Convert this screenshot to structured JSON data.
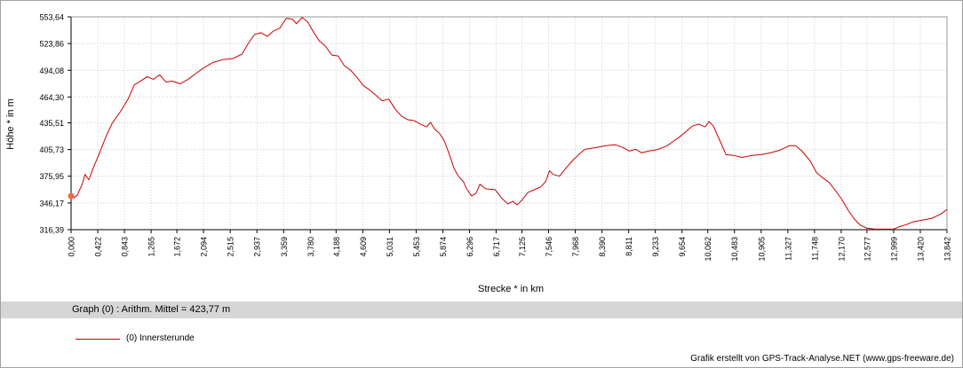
{
  "chart_data": {
    "type": "line",
    "xlabel": "Strecke *  in  km",
    "ylabel": "Höhe *  in  m",
    "xlim": [
      0,
      13.842
    ],
    "ylim": [
      316.39,
      553.64
    ],
    "x_ticks": [
      "0,000",
      "0,422",
      "0,843",
      "1,265",
      "1,672",
      "2,094",
      "2,515",
      "2,937",
      "3,359",
      "3,780",
      "4,188",
      "4,609",
      "5,031",
      "5,453",
      "5,874",
      "6,296",
      "6,717",
      "7,125",
      "7,546",
      "7,968",
      "8,390",
      "8,811",
      "9,233",
      "9,654",
      "10,062",
      "10,483",
      "10,905",
      "11,327",
      "11,748",
      "12,170",
      "12,577",
      "12,999",
      "13,420",
      "13,842"
    ],
    "y_ticks": [
      "553,64",
      "523,86",
      "494,08",
      "464,30",
      "435,51",
      "405,73",
      "375,95",
      "346,17",
      "316,39"
    ],
    "grid": true,
    "series": [
      {
        "name": "(0) Innersterunde",
        "color": "#cc0000",
        "points": [
          [
            0.0,
            354
          ],
          [
            0.05,
            352
          ],
          [
            0.1,
            355
          ],
          [
            0.18,
            368
          ],
          [
            0.22,
            378
          ],
          [
            0.28,
            372
          ],
          [
            0.35,
            385
          ],
          [
            0.45,
            402
          ],
          [
            0.55,
            420
          ],
          [
            0.65,
            435
          ],
          [
            0.78,
            448
          ],
          [
            0.9,
            462
          ],
          [
            1.0,
            478
          ],
          [
            1.1,
            482
          ],
          [
            1.2,
            487
          ],
          [
            1.3,
            484
          ],
          [
            1.4,
            489
          ],
          [
            1.5,
            481
          ],
          [
            1.6,
            482
          ],
          [
            1.72,
            479
          ],
          [
            1.85,
            484
          ],
          [
            2.0,
            492
          ],
          [
            2.1,
            497
          ],
          [
            2.25,
            503
          ],
          [
            2.4,
            506
          ],
          [
            2.55,
            507
          ],
          [
            2.7,
            512
          ],
          [
            2.8,
            524
          ],
          [
            2.9,
            534
          ],
          [
            3.0,
            536
          ],
          [
            3.1,
            532
          ],
          [
            3.2,
            538
          ],
          [
            3.3,
            541
          ],
          [
            3.4,
            552
          ],
          [
            3.5,
            551
          ],
          [
            3.56,
            546
          ],
          [
            3.65,
            553
          ],
          [
            3.74,
            548
          ],
          [
            3.82,
            538
          ],
          [
            3.92,
            527
          ],
          [
            4.02,
            521
          ],
          [
            4.12,
            511
          ],
          [
            4.22,
            510
          ],
          [
            4.32,
            499
          ],
          [
            4.42,
            494
          ],
          [
            4.52,
            486
          ],
          [
            4.62,
            477
          ],
          [
            4.72,
            472
          ],
          [
            4.82,
            466
          ],
          [
            4.92,
            460
          ],
          [
            5.02,
            462
          ],
          [
            5.12,
            451
          ],
          [
            5.22,
            443
          ],
          [
            5.32,
            439
          ],
          [
            5.42,
            438
          ],
          [
            5.52,
            434
          ],
          [
            5.62,
            431
          ],
          [
            5.68,
            436
          ],
          [
            5.75,
            428
          ],
          [
            5.82,
            424
          ],
          [
            5.9,
            415
          ],
          [
            5.98,
            400
          ],
          [
            6.05,
            385
          ],
          [
            6.12,
            376
          ],
          [
            6.2,
            370
          ],
          [
            6.25,
            362
          ],
          [
            6.33,
            354
          ],
          [
            6.4,
            357
          ],
          [
            6.46,
            367
          ],
          [
            6.55,
            362
          ],
          [
            6.7,
            361
          ],
          [
            6.8,
            352
          ],
          [
            6.9,
            345
          ],
          [
            6.98,
            348
          ],
          [
            7.05,
            344
          ],
          [
            7.12,
            349
          ],
          [
            7.22,
            358
          ],
          [
            7.32,
            361
          ],
          [
            7.42,
            364
          ],
          [
            7.5,
            370
          ],
          [
            7.56,
            382
          ],
          [
            7.62,
            378
          ],
          [
            7.72,
            376
          ],
          [
            7.82,
            385
          ],
          [
            7.92,
            393
          ],
          [
            8.02,
            400
          ],
          [
            8.12,
            406
          ],
          [
            8.3,
            408
          ],
          [
            8.45,
            410
          ],
          [
            8.6,
            411
          ],
          [
            8.72,
            408
          ],
          [
            8.82,
            404
          ],
          [
            8.92,
            406
          ],
          [
            9.02,
            402
          ],
          [
            9.12,
            404
          ],
          [
            9.22,
            405
          ],
          [
            9.32,
            407
          ],
          [
            9.42,
            410
          ],
          [
            9.52,
            415
          ],
          [
            9.62,
            420
          ],
          [
            9.72,
            426
          ],
          [
            9.82,
            432
          ],
          [
            9.92,
            434
          ],
          [
            10.02,
            431
          ],
          [
            10.08,
            437
          ],
          [
            10.15,
            432
          ],
          [
            10.25,
            416
          ],
          [
            10.35,
            400
          ],
          [
            10.48,
            399
          ],
          [
            10.6,
            397
          ],
          [
            10.75,
            399
          ],
          [
            10.9,
            400
          ],
          [
            11.05,
            402
          ],
          [
            11.2,
            405
          ],
          [
            11.35,
            410
          ],
          [
            11.45,
            410
          ],
          [
            11.55,
            404
          ],
          [
            11.68,
            393
          ],
          [
            11.78,
            380
          ],
          [
            11.88,
            374
          ],
          [
            11.98,
            369
          ],
          [
            12.08,
            360
          ],
          [
            12.18,
            350
          ],
          [
            12.28,
            338
          ],
          [
            12.38,
            328
          ],
          [
            12.48,
            321
          ],
          [
            12.58,
            318
          ],
          [
            12.7,
            317
          ],
          [
            12.85,
            317
          ],
          [
            13.0,
            317
          ],
          [
            13.1,
            320
          ],
          [
            13.2,
            322
          ],
          [
            13.3,
            325
          ],
          [
            13.45,
            327
          ],
          [
            13.6,
            329
          ],
          [
            13.75,
            334
          ],
          [
            13.842,
            339
          ]
        ]
      }
    ]
  },
  "summary": {
    "text": "Graph (0) :   Arithm. Mittel = 423,77 m"
  },
  "legend": {
    "label": "(0) Innersterunde",
    "color": "#cc0000"
  },
  "credit": "Grafik erstellt von GPS-Track-Analyse.NET (www.gps-freeware.de)"
}
